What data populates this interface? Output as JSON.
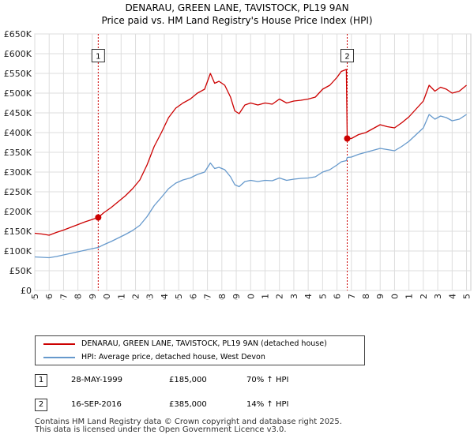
{
  "title_line1": "DENARAU, GREEN LANE, TAVISTOCK, PL19 9AN",
  "title_line2": "Price paid vs. HM Land Registry's House Price Index (HPI)",
  "legend": {
    "property_label": "DENARAU, GREEN LANE, TAVISTOCK, PL19 9AN (detached house)",
    "hpi_label": "HPI: Average price, detached house, West Devon"
  },
  "colors": {
    "property": "#cc0000",
    "hpi": "#6699cc",
    "marker": "#cc0000",
    "grid": "#dddddd"
  },
  "annotations": [
    {
      "num": "1",
      "date": "28-MAY-1999",
      "price": "£185,000",
      "hpi": "70% ↑ HPI"
    },
    {
      "num": "2",
      "date": "16-SEP-2016",
      "price": "£385,000",
      "hpi": "14% ↑ HPI"
    }
  ],
  "footer_line1": "Contains HM Land Registry data © Crown copyright and database right 2025.",
  "footer_line2": "This data is licensed under the Open Government Licence v3.0.",
  "chart_data": {
    "type": "line",
    "title": "DENARAU, GREEN LANE, TAVISTOCK, PL19 9AN",
    "subtitle": "Price paid vs. HM Land Registry's House Price Index (HPI)",
    "xlim": [
      1995,
      2025.3
    ],
    "ylim": [
      0,
      650000
    ],
    "y_ticks": [
      0,
      50000,
      100000,
      150000,
      200000,
      250000,
      300000,
      350000,
      400000,
      450000,
      500000,
      550000,
      600000,
      650000
    ],
    "y_tick_labels": [
      "£0",
      "£50K",
      "£100K",
      "£150K",
      "£200K",
      "£250K",
      "£300K",
      "£350K",
      "£400K",
      "£450K",
      "£500K",
      "£550K",
      "£600K",
      "£650K"
    ],
    "x_ticks": [
      1995,
      1996,
      1997,
      1998,
      1999,
      2000,
      2001,
      2002,
      2003,
      2004,
      2005,
      2006,
      2007,
      2008,
      2009,
      2010,
      2011,
      2012,
      2013,
      2014,
      2015,
      2016,
      2017,
      2018,
      2019,
      2020,
      2021,
      2022,
      2023,
      2024,
      2025
    ],
    "x_tick_labels": [
      "1995",
      "1996",
      "1997",
      "1998",
      "1999",
      "2000",
      "2001",
      "2002",
      "2003",
      "2004",
      "2005",
      "2006",
      "2007",
      "2008",
      "2009",
      "2010",
      "2011",
      "2012",
      "2013",
      "2014",
      "2015",
      "2016",
      "2017",
      "2018",
      "2019",
      "2020",
      "2021",
      "2022",
      "2023",
      "2024",
      "2025"
    ],
    "grid": true,
    "legend_position": "below",
    "series": [
      {
        "name": "DENARAU, GREEN LANE, TAVISTOCK, PL19 9AN (detached house)",
        "x": [
          1995.0,
          1995.5,
          1996.0,
          1996.5,
          1997.0,
          1997.5,
          1998.0,
          1998.5,
          1999.0,
          1999.41,
          1999.8,
          2000.3,
          2000.8,
          2001.3,
          2001.8,
          2002.3,
          2002.8,
          2003.3,
          2003.8,
          2004.3,
          2004.8,
          2005.3,
          2005.8,
          2006.3,
          2006.8,
          2007.2,
          2007.5,
          2007.8,
          2008.2,
          2008.6,
          2008.9,
          2009.2,
          2009.6,
          2010.0,
          2010.5,
          2011.0,
          2011.5,
          2012.0,
          2012.5,
          2013.0,
          2013.5,
          2014.0,
          2014.5,
          2015.0,
          2015.5,
          2016.0,
          2016.3,
          2016.65,
          2016.71,
          2017.0,
          2017.5,
          2018.0,
          2018.5,
          2019.0,
          2019.5,
          2020.0,
          2020.5,
          2021.0,
          2021.5,
          2022.0,
          2022.4,
          2022.8,
          2023.2,
          2023.6,
          2024.0,
          2024.5,
          2025.0
        ],
        "y": [
          145000,
          143000,
          140000,
          147000,
          153000,
          160000,
          167000,
          174000,
          180000,
          185000,
          197000,
          210000,
          225000,
          240000,
          258000,
          280000,
          318000,
          365000,
          400000,
          438000,
          462000,
          475000,
          485000,
          500000,
          510000,
          550000,
          525000,
          530000,
          520000,
          490000,
          455000,
          448000,
          470000,
          475000,
          470000,
          475000,
          472000,
          485000,
          475000,
          480000,
          482000,
          485000,
          490000,
          510000,
          520000,
          540000,
          555000,
          560000,
          385000,
          385000,
          395000,
          400000,
          410000,
          420000,
          415000,
          412000,
          425000,
          440000,
          460000,
          480000,
          520000,
          505000,
          515000,
          510000,
          500000,
          505000,
          520000
        ]
      },
      {
        "name": "HPI: Average price, detached house, West Devon",
        "x": [
          1995.0,
          1995.5,
          1996.0,
          1996.5,
          1997.0,
          1997.5,
          1998.0,
          1998.5,
          1999.0,
          1999.41,
          1999.8,
          2000.3,
          2000.8,
          2001.3,
          2001.8,
          2002.3,
          2002.8,
          2003.3,
          2003.8,
          2004.3,
          2004.8,
          2005.3,
          2005.8,
          2006.3,
          2006.8,
          2007.2,
          2007.5,
          2007.8,
          2008.2,
          2008.6,
          2008.9,
          2009.2,
          2009.6,
          2010.0,
          2010.5,
          2011.0,
          2011.5,
          2012.0,
          2012.5,
          2013.0,
          2013.5,
          2014.0,
          2014.5,
          2015.0,
          2015.5,
          2016.0,
          2016.3,
          2016.65,
          2016.71,
          2017.0,
          2017.5,
          2018.0,
          2018.5,
          2019.0,
          2019.5,
          2020.0,
          2020.5,
          2021.0,
          2021.5,
          2022.0,
          2022.4,
          2022.8,
          2023.2,
          2023.6,
          2024.0,
          2024.5,
          2025.0
        ],
        "y": [
          85000,
          84000,
          83000,
          86000,
          90000,
          94000,
          98000,
          102000,
          106000,
          109000,
          116000,
          124000,
          133000,
          142000,
          152000,
          165000,
          187000,
          215000,
          236000,
          258000,
          272000,
          280000,
          285000,
          294000,
          300000,
          323000,
          309000,
          312000,
          306000,
          288000,
          268000,
          263000,
          276000,
          279000,
          276000,
          279000,
          278000,
          285000,
          279000,
          282000,
          284000,
          285000,
          288000,
          300000,
          306000,
          318000,
          326000,
          329000,
          337000,
          338000,
          345000,
          350000,
          355000,
          360000,
          357000,
          354000,
          365000,
          378000,
          395000,
          412000,
          446000,
          434000,
          442000,
          438000,
          430000,
          434000,
          446000
        ]
      }
    ],
    "sales": [
      {
        "label": "1",
        "x": 1999.41,
        "y": 185000
      },
      {
        "label": "2",
        "x": 2016.71,
        "y": 385000
      }
    ]
  }
}
